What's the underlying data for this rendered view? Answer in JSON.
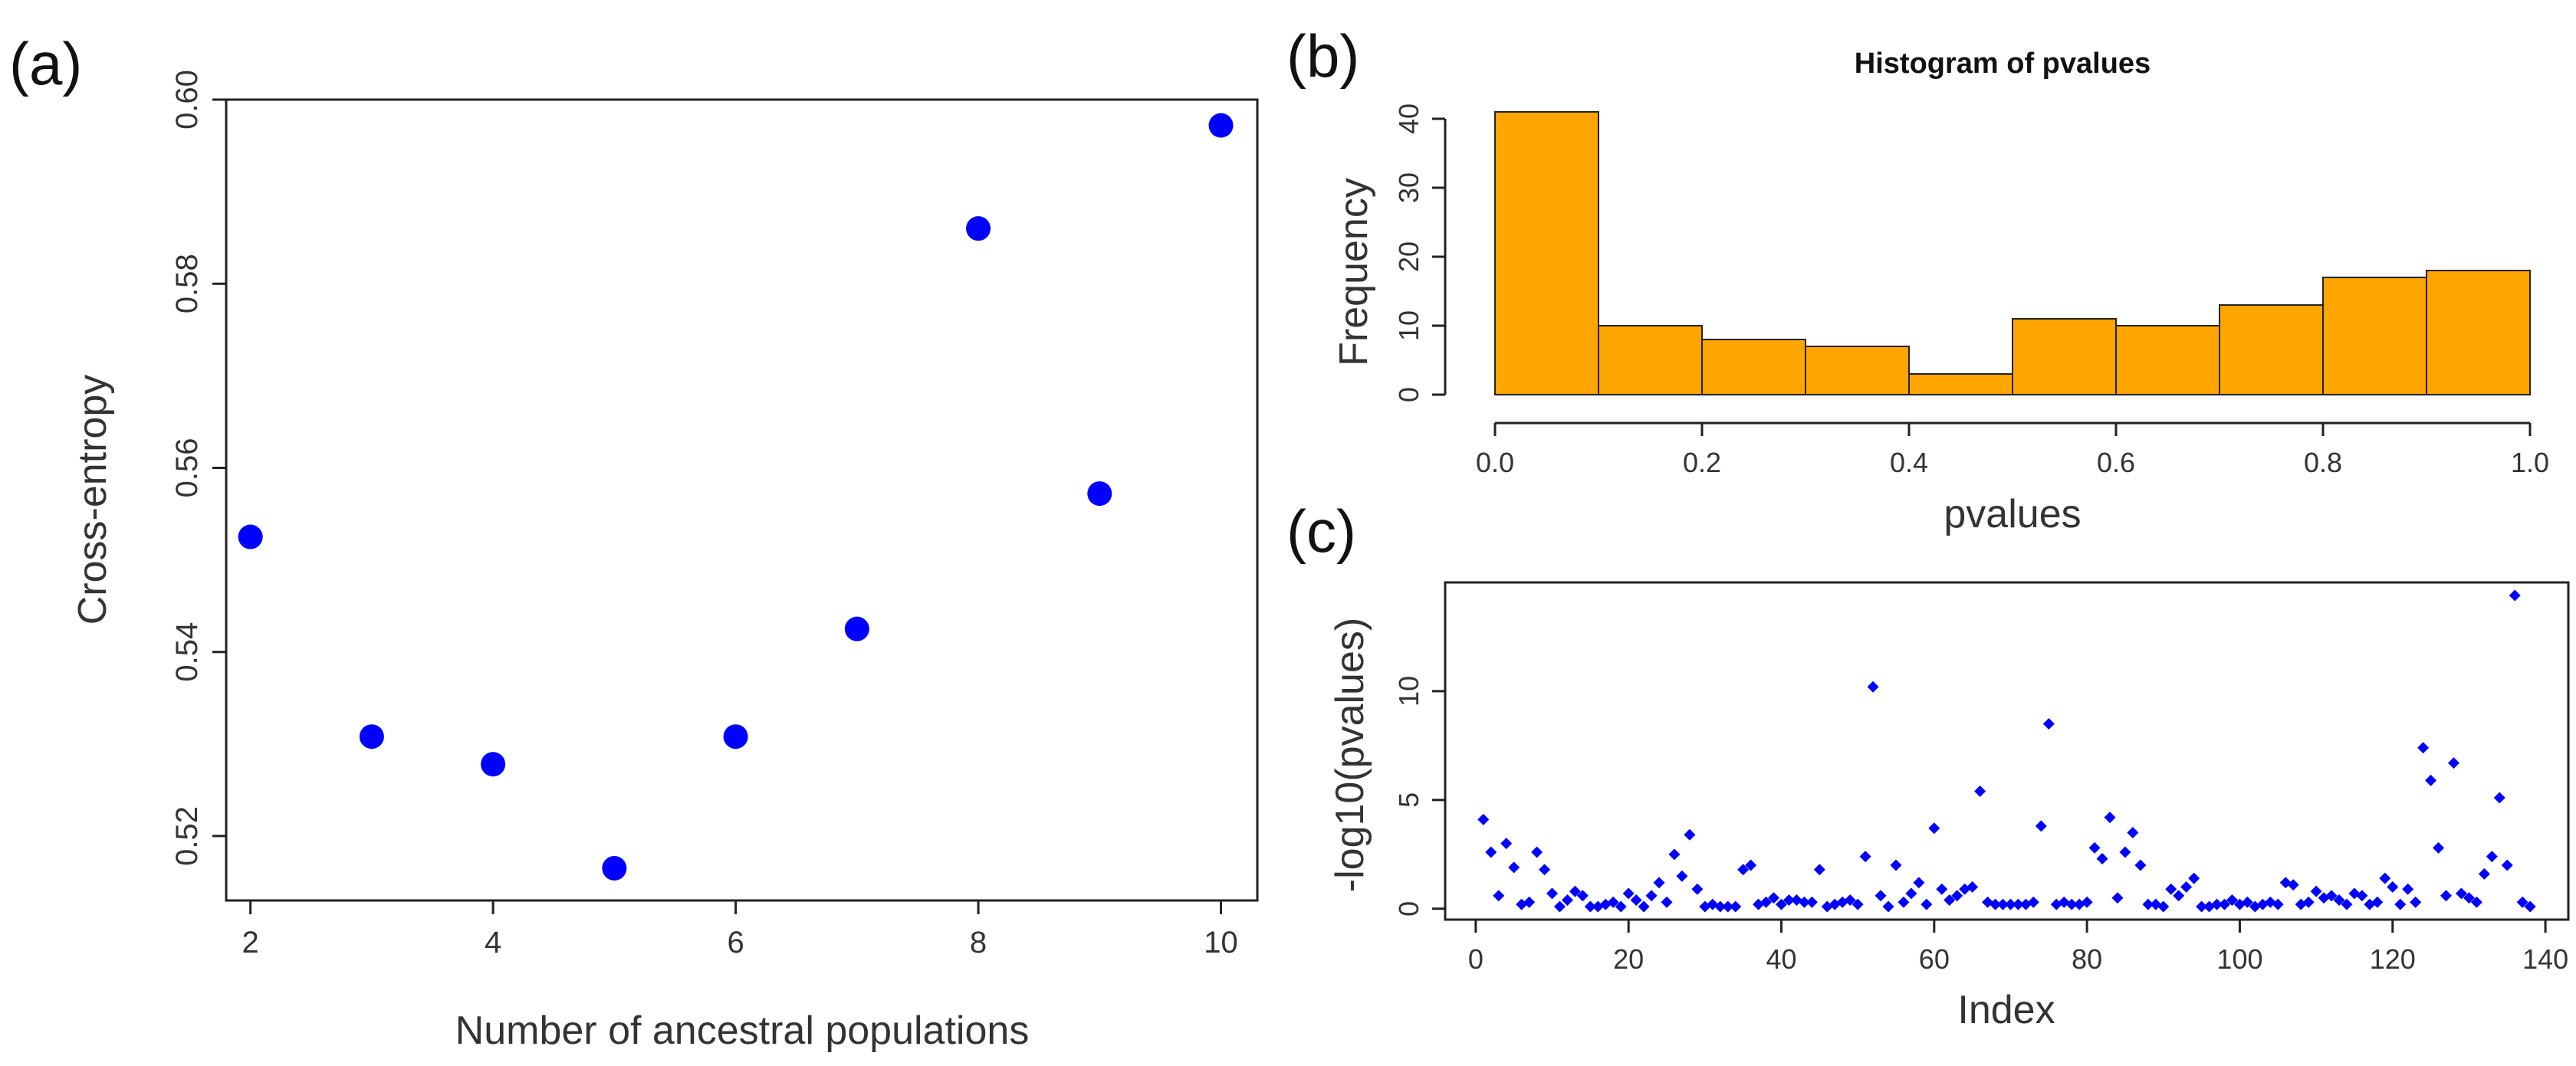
{
  "panel_labels": [
    "(a)",
    "(b)",
    "(c)"
  ],
  "chart_data": [
    {
      "type": "scatter",
      "panel": "(a)",
      "title": "",
      "xlabel": "Number of ancestral populations",
      "ylabel": "Cross-entropy",
      "xlim": [
        1.8,
        10.3
      ],
      "ylim": [
        0.513,
        0.6
      ],
      "x_ticks": [
        2,
        4,
        6,
        8,
        10
      ],
      "y_ticks": [
        0.52,
        0.54,
        0.56,
        0.58,
        0.6
      ],
      "x_tick_labels": [
        "2",
        "4",
        "6",
        "8",
        "10"
      ],
      "y_tick_labels": [
        "0.52",
        "0.54",
        "0.56",
        "0.58",
        "0.60"
      ],
      "grid": false,
      "point_color": "#0000ff",
      "x": [
        2,
        3,
        4,
        5,
        6,
        7,
        8,
        9,
        10
      ],
      "y": [
        0.5525,
        0.5308,
        0.5278,
        0.5165,
        0.5308,
        0.5425,
        0.586,
        0.5572,
        0.5972
      ]
    },
    {
      "type": "bar",
      "panel": "(b)",
      "title": "Histogram of pvalues",
      "xlabel": "pvalues",
      "ylabel": "Frequency",
      "xlim": [
        0.0,
        1.0
      ],
      "ylim": [
        0,
        42
      ],
      "x_ticks": [
        0.0,
        0.2,
        0.4,
        0.6,
        0.8,
        1.0
      ],
      "y_ticks": [
        0,
        10,
        20,
        30,
        40
      ],
      "x_tick_labels": [
        "0.0",
        "0.2",
        "0.4",
        "0.6",
        "0.8",
        "1.0"
      ],
      "y_tick_labels": [
        "0",
        "10",
        "20",
        "30",
        "40"
      ],
      "grid": false,
      "bar_color": "#ffa500",
      "bin_edges": [
        0.0,
        0.1,
        0.2,
        0.3,
        0.4,
        0.5,
        0.6,
        0.7,
        0.8,
        0.9,
        1.0
      ],
      "values": [
        41,
        10,
        8,
        7,
        3,
        11,
        10,
        13,
        17,
        18
      ]
    },
    {
      "type": "scatter",
      "panel": "(c)",
      "title": "",
      "xlabel": "Index",
      "ylabel": "-log10(pvalues)",
      "xlim": [
        -4,
        143
      ],
      "ylim": [
        -0.5,
        15
      ],
      "x_ticks": [
        0,
        20,
        40,
        60,
        80,
        100,
        120,
        140
      ],
      "y_ticks": [
        0,
        5,
        10
      ],
      "x_tick_labels": [
        "0",
        "20",
        "40",
        "60",
        "80",
        "100",
        "120",
        "140"
      ],
      "y_tick_labels": [
        "0",
        "5",
        "10"
      ],
      "grid": false,
      "point_color": "#0000ff",
      "x": [
        1,
        2,
        3,
        4,
        5,
        6,
        7,
        8,
        9,
        10,
        11,
        12,
        13,
        14,
        15,
        16,
        17,
        18,
        19,
        20,
        21,
        22,
        23,
        24,
        25,
        26,
        27,
        28,
        29,
        30,
        31,
        32,
        33,
        34,
        35,
        36,
        37,
        38,
        39,
        40,
        41,
        42,
        43,
        44,
        45,
        46,
        47,
        48,
        49,
        50,
        51,
        52,
        53,
        54,
        55,
        56,
        57,
        58,
        59,
        60,
        61,
        62,
        63,
        64,
        65,
        66,
        67,
        68,
        69,
        70,
        71,
        72,
        73,
        74,
        75,
        76,
        77,
        78,
        79,
        80,
        81,
        82,
        83,
        84,
        85,
        86,
        87,
        88,
        89,
        90,
        91,
        92,
        93,
        94,
        95,
        96,
        97,
        98,
        99,
        100,
        101,
        102,
        103,
        104,
        105,
        106,
        107,
        108,
        109,
        110,
        111,
        112,
        113,
        114,
        115,
        116,
        117,
        118,
        119,
        120,
        121,
        122,
        123,
        124,
        125,
        126,
        127,
        128,
        129,
        130,
        131,
        132,
        133,
        134,
        135,
        136,
        137,
        138
      ],
      "y": [
        4.1,
        2.6,
        0.6,
        3.0,
        1.9,
        0.2,
        0.3,
        2.6,
        1.8,
        0.7,
        0.1,
        0.4,
        0.8,
        0.6,
        0.1,
        0.1,
        0.2,
        0.3,
        0.1,
        0.7,
        0.4,
        0.1,
        0.6,
        1.2,
        0.3,
        2.5,
        1.5,
        3.4,
        0.9,
        0.1,
        0.2,
        0.1,
        0.1,
        0.1,
        1.8,
        2.0,
        0.2,
        0.3,
        0.5,
        0.2,
        0.4,
        0.4,
        0.3,
        0.3,
        1.8,
        0.1,
        0.2,
        0.3,
        0.4,
        0.2,
        2.4,
        10.2,
        0.6,
        0.1,
        2.0,
        0.3,
        0.7,
        1.2,
        0.2,
        3.7,
        0.9,
        0.4,
        0.6,
        0.9,
        1.0,
        5.4,
        0.3,
        0.2,
        0.2,
        0.2,
        0.2,
        0.2,
        0.3,
        3.8,
        8.5,
        0.2,
        0.3,
        0.2,
        0.2,
        0.3,
        2.8,
        2.3,
        4.2,
        0.5,
        2.6,
        3.5,
        2.0,
        0.2,
        0.2,
        0.1,
        0.9,
        0.6,
        1.0,
        1.4,
        0.1,
        0.1,
        0.2,
        0.2,
        0.4,
        0.2,
        0.3,
        0.1,
        0.2,
        0.3,
        0.2,
        1.2,
        1.1,
        0.2,
        0.3,
        0.8,
        0.5,
        0.6,
        0.4,
        0.2,
        0.7,
        0.6,
        0.2,
        0.3,
        1.4,
        1.0,
        0.2,
        0.9,
        0.3,
        7.4,
        5.9,
        2.8,
        0.6,
        6.7,
        0.7,
        0.5,
        0.3,
        1.6,
        2.4,
        5.1,
        2.0,
        14.4,
        0.3,
        0.1
      ]
    }
  ]
}
